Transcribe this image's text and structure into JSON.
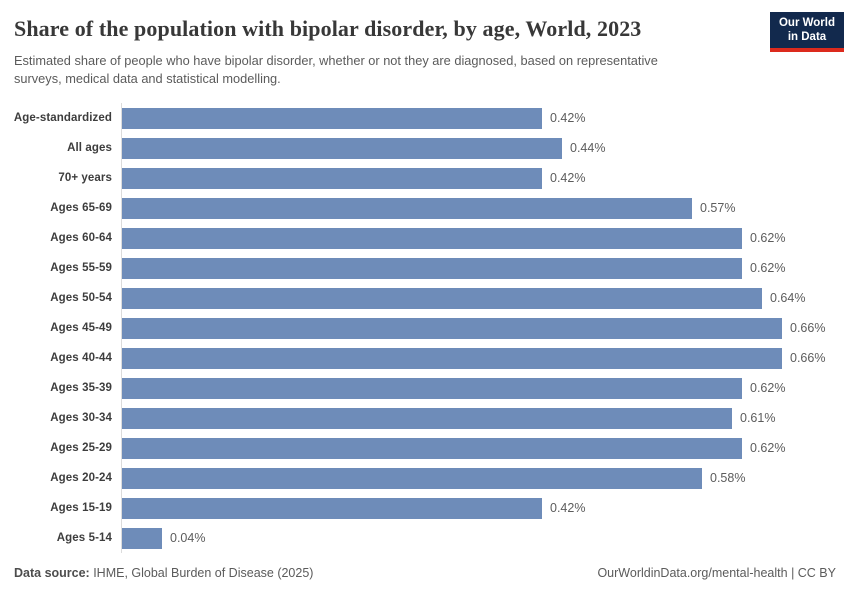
{
  "header": {
    "title": "Share of the population with bipolar disorder, by age, World, 2023",
    "subtitle": "Estimated share of people who have bipolar disorder, whether or not they are diagnosed, based on representative surveys, medical data and statistical modelling.",
    "logo": {
      "line1": "Our World",
      "line2": "in Data",
      "bg_color": "#12294d",
      "accent_color": "#dc2a1d"
    }
  },
  "chart_data": {
    "type": "bar",
    "orientation": "horizontal",
    "title": "Share of the population with bipolar disorder, by age, World, 2023",
    "xlabel": "",
    "ylabel": "",
    "xlim": [
      0,
      0.7
    ],
    "grid": false,
    "legend": "none",
    "unit": "%",
    "bar_color": "#6e8cb9",
    "categories": [
      "Age-standardized",
      "All ages",
      "70+ years",
      "Ages 65-69",
      "Ages 60-64",
      "Ages 55-59",
      "Ages 50-54",
      "Ages 45-49",
      "Ages 40-44",
      "Ages 35-39",
      "Ages 30-34",
      "Ages 25-29",
      "Ages 20-24",
      "Ages 15-19",
      "Ages 5-14"
    ],
    "values": [
      0.42,
      0.44,
      0.42,
      0.57,
      0.62,
      0.62,
      0.64,
      0.66,
      0.66,
      0.62,
      0.61,
      0.62,
      0.58,
      0.42,
      0.04
    ],
    "value_labels": [
      "0.42%",
      "0.44%",
      "0.42%",
      "0.57%",
      "0.62%",
      "0.62%",
      "0.64%",
      "0.66%",
      "0.66%",
      "0.62%",
      "0.61%",
      "0.62%",
      "0.58%",
      "0.42%",
      "0.04%"
    ]
  },
  "footer": {
    "source_label": "Data source:",
    "source_text": " IHME, Global Burden of Disease (2025)",
    "credit": "OurWorldinData.org/mental-health | CC BY"
  }
}
